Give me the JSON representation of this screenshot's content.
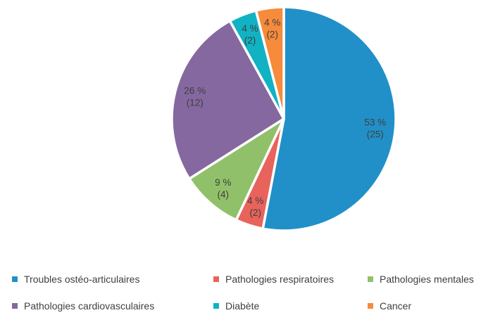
{
  "chart_data": {
    "type": "pie",
    "title": "",
    "start_angle_deg": 0,
    "direction": "clockwise",
    "label_color": "#3F3F3F",
    "separator_color": "#FFFFFF",
    "legend": {
      "position": "bottom",
      "columns": 3,
      "rows": 2
    },
    "slices": [
      {
        "label": "Troubles ostéo-articulaires",
        "percent": 53,
        "count": 25,
        "percent_label": "53 %",
        "count_label": "(25)",
        "color": "#2190C8"
      },
      {
        "label": "Pathologies respiratoires",
        "percent": 4,
        "count": 2,
        "percent_label": "4 %",
        "count_label": "(2)",
        "color": "#E8635C"
      },
      {
        "label": "Pathologies mentales",
        "percent": 9,
        "count": 4,
        "percent_label": "9 %",
        "count_label": "(4)",
        "color": "#90C16A"
      },
      {
        "label": "Pathologies cardiovasculaires",
        "percent": 26,
        "count": 12,
        "percent_label": "26 %",
        "count_label": "(12)",
        "color": "#8568A0"
      },
      {
        "label": "Diabète",
        "percent": 4,
        "count": 2,
        "percent_label": "4 %",
        "count_label": "(2)",
        "color": "#10B2C3"
      },
      {
        "label": "Cancer",
        "percent": 4,
        "count": 2,
        "percent_label": "4 %",
        "count_label": "(2)",
        "color": "#F68B3C"
      }
    ]
  }
}
